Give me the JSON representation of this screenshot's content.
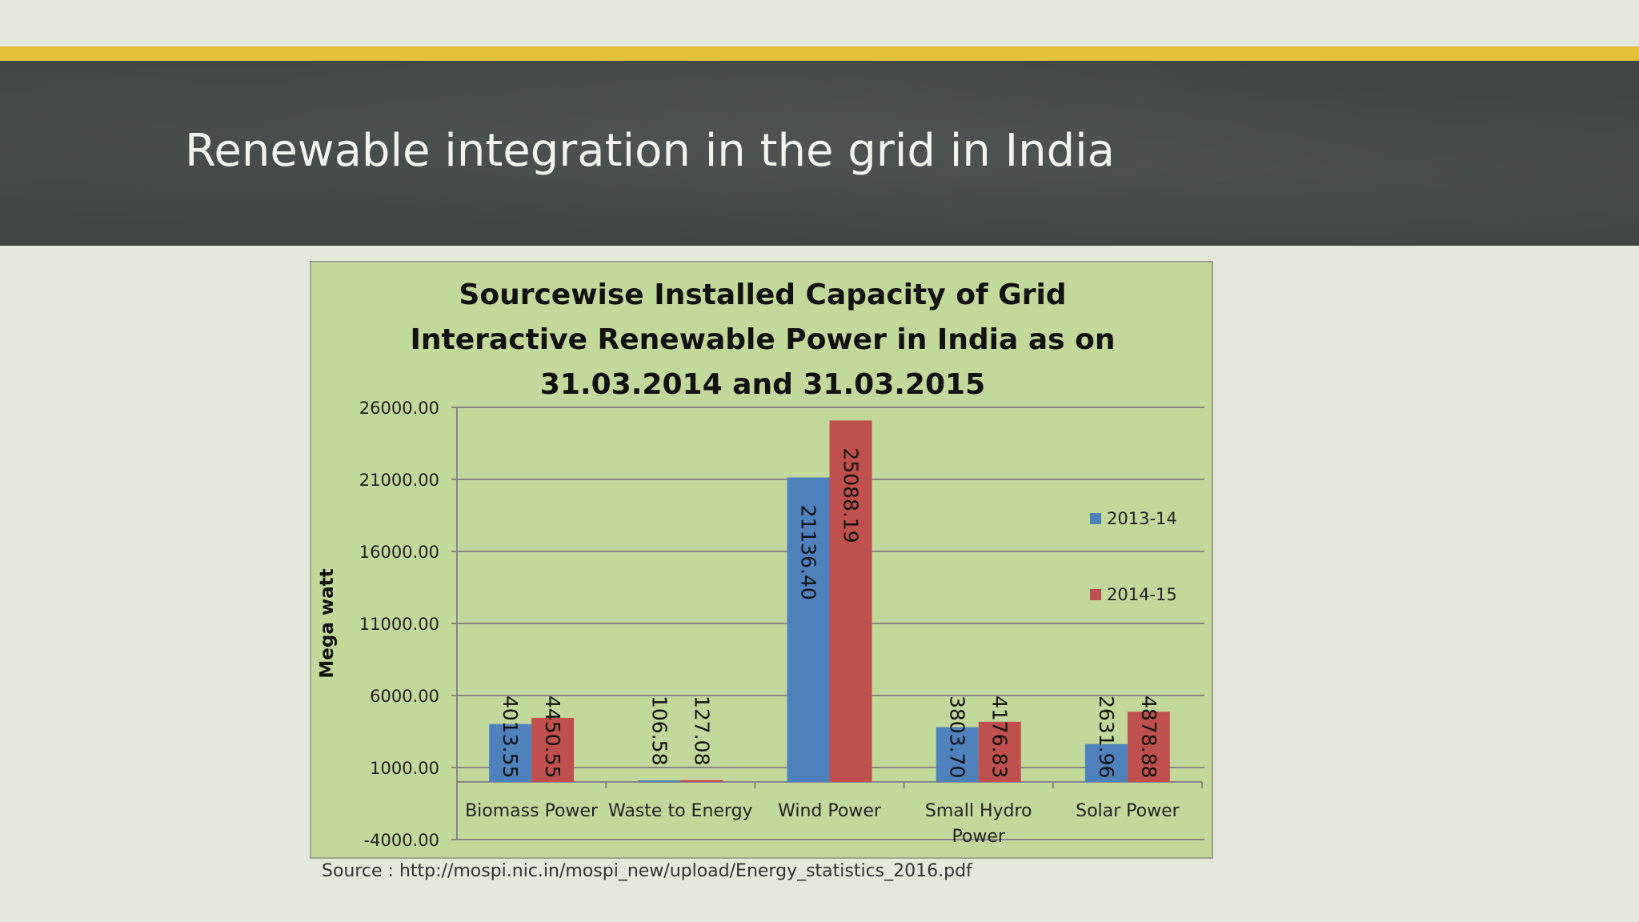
{
  "slide": {
    "title": "Renewable integration in the grid in India",
    "source": "Source : http://mospi.nic.in/mospi_new/upload/Energy_statistics_2016.pdf"
  },
  "colors": {
    "accent_bar": "#e3c13b",
    "title_band": "#3f4543",
    "plot_background": "#c3d89b",
    "series_2013_14": "#4f81bd",
    "series_2014_15": "#c0504d"
  },
  "chart_data": {
    "type": "bar",
    "title_lines": [
      "Sourcewise Installed Capacity of Grid",
      "Interactive Renewable Power in India as on",
      "31.03.2014 and 31.03.2015"
    ],
    "ylabel": "Mega watt",
    "xlabel": "",
    "ylim": [
      -4000,
      26000
    ],
    "yticks": [
      -4000,
      1000,
      6000,
      11000,
      16000,
      21000,
      26000
    ],
    "ytick_labels": [
      "-4000.00",
      "1000.00",
      "6000.00",
      "11000.00",
      "16000.00",
      "21000.00",
      "26000.00"
    ],
    "baseline": 0,
    "grid": true,
    "legend_position": "right",
    "categories": [
      [
        "Biomass Power"
      ],
      [
        "Waste to Energy"
      ],
      [
        "Wind Power"
      ],
      [
        "Small Hydro",
        "Power"
      ],
      [
        "Solar Power"
      ]
    ],
    "series": [
      {
        "name": "2013-14",
        "color": "#4f81bd",
        "values": [
          4013.55,
          106.58,
          21136.4,
          3803.7,
          2631.96
        ],
        "labels": [
          "4013.55",
          "106.58",
          "21136.40",
          "3803.70",
          "2631.96"
        ]
      },
      {
        "name": "2014-15",
        "color": "#c0504d",
        "values": [
          4450.55,
          127.08,
          25088.19,
          4176.83,
          4878.88
        ],
        "labels": [
          "4450.55",
          "127.08",
          "25088.19",
          "4176.83",
          "4878.88"
        ]
      }
    ]
  }
}
